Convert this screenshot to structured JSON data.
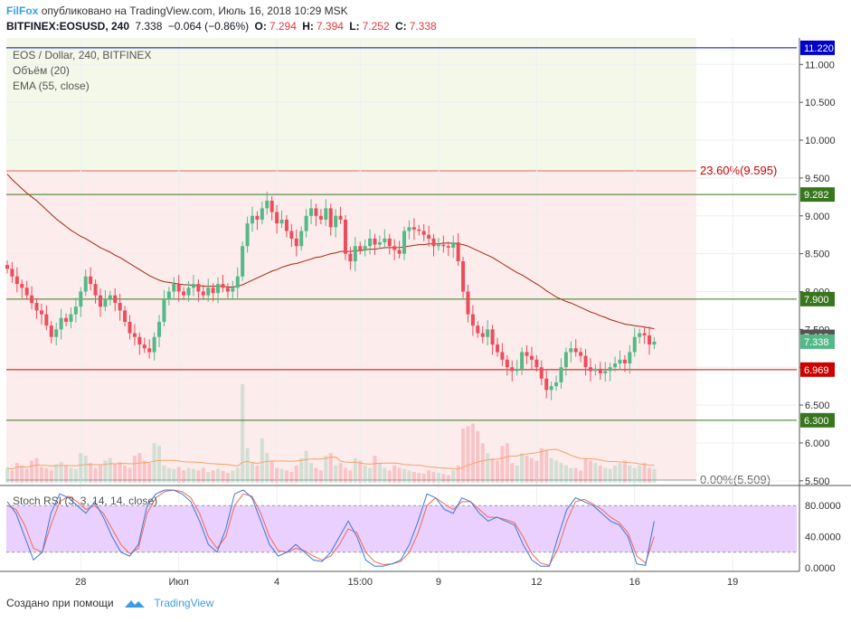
{
  "header": {
    "brand": "FilFox",
    "published": "опубликовано на TradingView.com, Июль 16, 2018 10:29 MSK",
    "symbol": "BITFINEX:EOSUSD, 240",
    "last": "7.338",
    "change": "−0.064 (−0.86%)",
    "o_label": "O:",
    "o": "7.294",
    "h_label": "H:",
    "h": "7.394",
    "l_label": "L:",
    "l": "7.252",
    "c_label": "C:",
    "c": "7.338"
  },
  "legend": {
    "title": "EOS / Dollar, 240, BITFINEX",
    "volume": "Объём (20)",
    "ema": "EMA (55, close)",
    "stoch": "Stoch RSI (3, 3, 14, 14, close)"
  },
  "footer": {
    "created": "Создано при помощи",
    "tv": "TradingView"
  },
  "colors": {
    "up": "#53b987",
    "down": "#eb4d5c",
    "ema": "#a52714",
    "fib_top_zone": "#f4f8e9",
    "fib_zone": "#fceceb",
    "stoch_k": "#3c78d8",
    "stoch_d": "#f1694f",
    "stoch_band": "#e9d0ff"
  },
  "chart_data": {
    "type": "candlestick",
    "x_ticks": [
      "28",
      "Июл",
      "4",
      "15:00",
      "9",
      "12",
      "16",
      "19"
    ],
    "y_ticks": [
      "5.500",
      "6.000",
      "6.500",
      "7.000",
      "7.500",
      "8.000",
      "8.500",
      "9.000",
      "9.500",
      "10.000",
      "10.500",
      "11.000"
    ],
    "y_range": [
      5.45,
      11.35
    ],
    "fib_levels": [
      {
        "label": "23.60%(9.595)",
        "value": 9.595
      },
      {
        "label": "0.00%(5.509)",
        "value": 5.509
      }
    ],
    "price_lines": [
      {
        "label": "11.220",
        "value": 11.22,
        "color": "#0000cc"
      },
      {
        "label": "9.282",
        "value": 9.282,
        "color": "#38761d"
      },
      {
        "label": "7.900",
        "value": 7.9,
        "color": "#38761d"
      },
      {
        "label": "6.969",
        "value": 6.969,
        "color": "#cc0000"
      },
      {
        "label": "6.300",
        "value": 6.3,
        "color": "#38761d"
      }
    ],
    "axis_markers": [
      {
        "label": "7.402",
        "value": 7.402,
        "color": "#555555"
      },
      {
        "label": "7.338",
        "value": 7.338,
        "color": "#53b987"
      }
    ],
    "close": [
      8.3,
      8.2,
      8.1,
      8.05,
      7.95,
      7.85,
      7.75,
      7.7,
      7.55,
      7.4,
      7.5,
      7.65,
      7.6,
      7.7,
      7.8,
      8.0,
      8.2,
      8.1,
      7.95,
      7.8,
      7.9,
      7.95,
      7.85,
      7.75,
      7.6,
      7.45,
      7.4,
      7.3,
      7.25,
      7.2,
      7.4,
      7.6,
      7.9,
      8.0,
      8.1,
      8.0,
      7.95,
      8.05,
      8.1,
      8.0,
      7.95,
      8.05,
      7.98,
      8.1,
      8.05,
      8.0,
      8.05,
      8.2,
      8.6,
      8.9,
      9.0,
      8.95,
      9.1,
      9.2,
      9.05,
      8.9,
      8.95,
      8.8,
      8.7,
      8.6,
      8.8,
      9.0,
      9.1,
      9.0,
      8.95,
      9.1,
      8.85,
      9.0,
      8.95,
      8.5,
      8.4,
      8.6,
      8.55,
      8.6,
      8.7,
      8.62,
      8.65,
      8.7,
      8.6,
      8.55,
      8.5,
      8.8,
      8.85,
      8.82,
      8.8,
      8.75,
      8.7,
      8.6,
      8.62,
      8.6,
      8.58,
      8.65,
      8.4,
      8.0,
      7.7,
      7.55,
      7.45,
      7.4,
      7.5,
      7.3,
      7.2,
      7.1,
      7.0,
      6.95,
      6.98,
      7.2,
      7.15,
      7.1,
      7.0,
      6.85,
      6.7,
      6.75,
      6.8,
      7.0,
      7.2,
      7.25,
      7.2,
      7.15,
      7.0,
      6.95,
      6.98,
      6.92,
      6.95,
      7.0,
      7.05,
      7.1,
      7.05,
      7.2,
      7.4,
      7.45,
      7.42,
      7.3,
      7.338
    ],
    "ema": [
      9.55,
      9.48,
      9.42,
      9.36,
      9.3,
      9.25,
      9.2,
      9.14,
      9.08,
      9.02,
      8.96,
      8.91,
      8.86,
      8.81,
      8.77,
      8.73,
      8.7,
      8.66,
      8.62,
      8.58,
      8.55,
      8.52,
      8.48,
      8.45,
      8.41,
      8.37,
      8.33,
      8.29,
      8.25,
      8.21,
      8.18,
      8.15,
      8.13,
      8.12,
      8.11,
      8.1,
      8.09,
      8.09,
      8.08,
      8.08,
      8.07,
      8.07,
      8.07,
      8.07,
      8.07,
      8.06,
      8.06,
      8.07,
      8.09,
      8.12,
      8.15,
      8.18,
      8.21,
      8.24,
      8.27,
      8.29,
      8.32,
      8.34,
      8.36,
      8.37,
      8.39,
      8.41,
      8.43,
      8.45,
      8.46,
      8.48,
      8.5,
      8.51,
      8.53,
      8.53,
      8.53,
      8.54,
      8.54,
      8.55,
      8.56,
      8.56,
      8.57,
      8.58,
      8.58,
      8.58,
      8.58,
      8.59,
      8.6,
      8.61,
      8.62,
      8.62,
      8.63,
      8.63,
      8.63,
      8.64,
      8.64,
      8.64,
      8.63,
      8.62,
      8.6,
      8.57,
      8.54,
      8.51,
      8.48,
      8.45,
      8.41,
      8.37,
      8.33,
      8.29,
      8.25,
      8.22,
      8.18,
      8.14,
      8.1,
      8.06,
      8.01,
      7.97,
      7.93,
      7.9,
      7.87,
      7.85,
      7.82,
      7.79,
      7.76,
      7.73,
      7.71,
      7.68,
      7.66,
      7.63,
      7.61,
      7.59,
      7.57,
      7.56,
      7.55,
      7.54,
      7.53,
      7.52,
      7.51
    ],
    "volume": [
      30,
      25,
      40,
      35,
      28,
      45,
      50,
      32,
      30,
      25,
      38,
      42,
      35,
      30,
      28,
      60,
      55,
      40,
      30,
      35,
      45,
      50,
      38,
      42,
      35,
      30,
      55,
      60,
      45,
      40,
      80,
      75,
      35,
      30,
      28,
      32,
      25,
      30,
      28,
      25,
      30,
      22,
      25,
      28,
      24,
      20,
      25,
      30,
      200,
      70,
      40,
      35,
      90,
      60,
      45,
      30,
      28,
      25,
      22,
      35,
      50,
      65,
      40,
      30,
      25,
      55,
      60,
      35,
      40,
      30,
      25,
      50,
      45,
      35,
      30,
      55,
      40,
      30,
      25,
      35,
      30,
      28,
      25,
      22,
      20,
      18,
      25,
      22,
      20,
      18,
      15,
      25,
      35,
      110,
      115,
      120,
      105,
      80,
      60,
      50,
      45,
      75,
      80,
      40,
      35,
      60,
      55,
      50,
      45,
      70,
      65,
      50,
      45,
      40,
      35,
      30,
      30,
      25,
      50,
      45,
      40,
      35,
      30,
      28,
      35,
      40,
      45,
      35,
      30,
      35,
      40,
      30,
      28
    ],
    "stoch_k": [
      85,
      70,
      40,
      10,
      20,
      70,
      95,
      90,
      80,
      70,
      85,
      65,
      40,
      20,
      15,
      30,
      80,
      95,
      100,
      100,
      95,
      85,
      60,
      30,
      20,
      50,
      95,
      100,
      90,
      60,
      30,
      15,
      20,
      30,
      20,
      10,
      8,
      20,
      40,
      60,
      40,
      10,
      2,
      2,
      5,
      10,
      30,
      60,
      95,
      90,
      75,
      70,
      90,
      85,
      70,
      60,
      65,
      60,
      55,
      30,
      10,
      2,
      2,
      40,
      75,
      90,
      85,
      80,
      70,
      60,
      55,
      40,
      5,
      3,
      60
    ],
    "stoch_d": [
      80,
      75,
      55,
      25,
      20,
      55,
      85,
      92,
      85,
      75,
      80,
      70,
      50,
      30,
      18,
      25,
      70,
      90,
      98,
      100,
      98,
      90,
      70,
      40,
      25,
      40,
      80,
      95,
      92,
      70,
      40,
      22,
      20,
      25,
      22,
      15,
      10,
      15,
      30,
      50,
      45,
      20,
      8,
      4,
      5,
      8,
      20,
      45,
      80,
      90,
      82,
      75,
      85,
      85,
      75,
      65,
      65,
      62,
      58,
      40,
      18,
      6,
      3,
      25,
      60,
      85,
      88,
      82,
      75,
      65,
      58,
      45,
      15,
      6,
      40
    ],
    "stoch_ticks": [
      "80.0000",
      "40.0000",
      "0.0000"
    ],
    "stoch_band": [
      20,
      80
    ]
  }
}
